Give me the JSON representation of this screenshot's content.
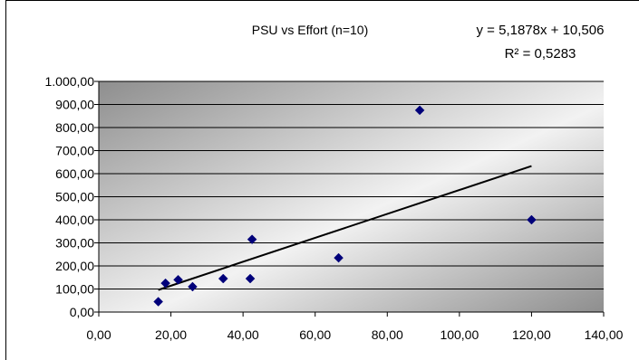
{
  "chart_data": {
    "type": "scatter",
    "title": "PSU vs Effort (n=10)",
    "xlabel": "",
    "ylabel": "",
    "xlim": [
      0,
      140
    ],
    "ylim": [
      0,
      1000
    ],
    "x_ticks": [
      "0,00",
      "20,00",
      "40,00",
      "60,00",
      "80,00",
      "100,00",
      "120,00",
      "140,00"
    ],
    "y_ticks": [
      "0,00",
      "100,00",
      "200,00",
      "300,00",
      "400,00",
      "500,00",
      "600,00",
      "700,00",
      "800,00",
      "900,00",
      "1.000,00"
    ],
    "grid": true,
    "points": [
      {
        "x": 16.5,
        "y": 45
      },
      {
        "x": 18.5,
        "y": 125
      },
      {
        "x": 22.0,
        "y": 140
      },
      {
        "x": 26.0,
        "y": 110
      },
      {
        "x": 34.5,
        "y": 145
      },
      {
        "x": 42.0,
        "y": 145
      },
      {
        "x": 42.5,
        "y": 315
      },
      {
        "x": 66.5,
        "y": 235
      },
      {
        "x": 89.0,
        "y": 875
      },
      {
        "x": 120.0,
        "y": 400
      }
    ],
    "trendline": {
      "equation": "y = 5,1878x + 10,506",
      "r_squared": "R² = 0,5283",
      "slope": 5.1878,
      "intercept": 10.506,
      "x_start": 16.5,
      "x_end": 120.0
    },
    "marker_color": "#00007a"
  }
}
